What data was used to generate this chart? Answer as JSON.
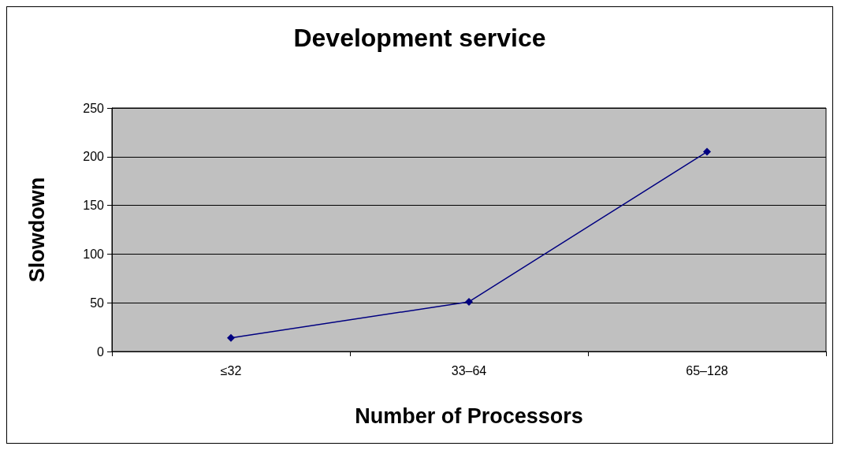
{
  "chart_data": {
    "type": "line",
    "title": "Development service",
    "xlabel": "Number of Processors",
    "ylabel": "Slowdown",
    "categories": [
      "≤32",
      "33–64",
      "65–128"
    ],
    "series": [
      {
        "color": "#000080",
        "values": [
          14,
          51,
          205
        ]
      }
    ],
    "ylim": [
      0,
      250
    ],
    "yticks": [
      0,
      50,
      100,
      150,
      200,
      250
    ],
    "grid": "y",
    "marker": "diamond",
    "line_style": "solid"
  }
}
